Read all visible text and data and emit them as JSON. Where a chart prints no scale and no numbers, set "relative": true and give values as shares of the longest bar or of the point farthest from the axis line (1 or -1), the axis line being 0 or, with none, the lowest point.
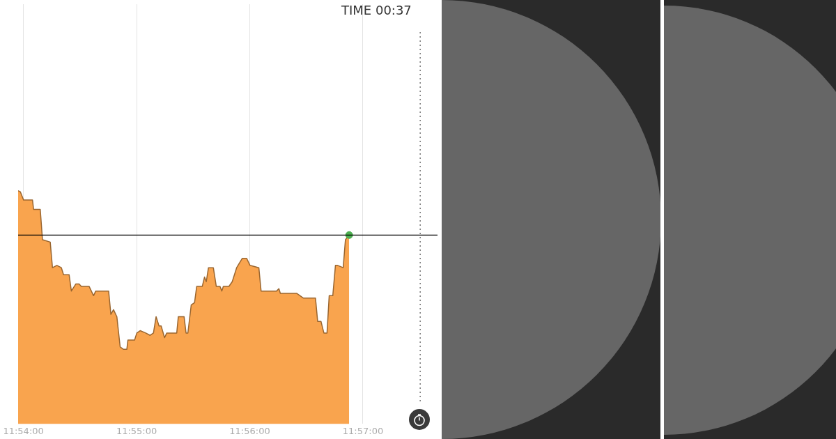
{
  "chart_data": {
    "type": "area",
    "relative": true,
    "grid": "x",
    "legend": false,
    "marker": "none",
    "xlim": [
      11.89922,
      11.96098
    ],
    "xticks": [
      {
        "value": 11.9,
        "label": "11:54:00"
      },
      {
        "value": 11.916667,
        "label": "11:55:00"
      },
      {
        "value": 11.933333,
        "label": "11:56:00"
      },
      {
        "value": 11.95,
        "label": "11:57:00"
      }
    ],
    "series": [
      {
        "type": "area",
        "color": "#f9a44e",
        "x": [
          11.89922,
          11.89954,
          11.90003,
          11.90134,
          11.9015,
          11.90248,
          11.90281,
          11.90395,
          11.90428,
          11.90493,
          11.90559,
          11.90591,
          11.90673,
          11.90706,
          11.90771,
          11.9082,
          11.90853,
          11.90967,
          11.91033,
          11.91065,
          11.91255,
          11.91288,
          11.91327,
          11.91376,
          11.91425,
          11.91474,
          11.91523,
          11.91539,
          11.91637,
          11.9167,
          11.91719,
          11.91801,
          11.91866,
          11.91915,
          11.91954,
          11.91997,
          11.92029,
          11.92078,
          11.92111,
          11.92258,
          11.92281,
          11.92366,
          11.92395,
          11.92422,
          11.92471,
          11.9252,
          11.92552,
          11.92634,
          11.92667,
          11.92693,
          11.92725,
          11.92797,
          11.9284,
          11.92895,
          11.92922,
          11.92944,
          11.93026,
          11.93075,
          11.9314,
          11.93222,
          11.93288,
          11.93337,
          11.93467,
          11.935,
          11.93729,
          11.93762,
          11.93784,
          11.94023,
          11.94121,
          11.94301,
          11.94333,
          11.94382,
          11.94425,
          11.94471,
          11.94503,
          11.94556,
          11.94595,
          11.94627,
          11.94709,
          11.94742,
          11.94797
        ],
        "values": [
          1.0,
          0.996,
          0.96,
          0.96,
          0.92,
          0.92,
          0.79,
          0.78,
          0.67,
          0.68,
          0.67,
          0.64,
          0.64,
          0.57,
          0.6,
          0.6,
          0.59,
          0.59,
          0.55,
          0.57,
          0.57,
          0.47,
          0.49,
          0.46,
          0.33,
          0.32,
          0.32,
          0.36,
          0.36,
          0.39,
          0.4,
          0.39,
          0.38,
          0.39,
          0.46,
          0.42,
          0.42,
          0.37,
          0.39,
          0.39,
          0.46,
          0.46,
          0.39,
          0.39,
          0.51,
          0.52,
          0.59,
          0.59,
          0.63,
          0.61,
          0.67,
          0.67,
          0.59,
          0.59,
          0.57,
          0.59,
          0.59,
          0.61,
          0.67,
          0.71,
          0.71,
          0.68,
          0.67,
          0.57,
          0.57,
          0.58,
          0.56,
          0.56,
          0.54,
          0.54,
          0.44,
          0.44,
          0.39,
          0.39,
          0.55,
          0.55,
          0.68,
          0.68,
          0.67,
          0.79,
          0.81
        ]
      },
      {
        "type": "scatter",
        "color": "#4caf50",
        "marker": "circle",
        "x": [
          11.94797
        ],
        "values": [
          0.81
        ]
      }
    ],
    "ref_lines": [
      {
        "axis": "y",
        "value": 0.81,
        "color": "#000000",
        "line_style": "solid"
      },
      {
        "axis": "x",
        "value": 11.95843,
        "color": "#555555",
        "line_style": "dotted"
      }
    ],
    "annotations": [
      "TIME 00:37"
    ]
  }
}
